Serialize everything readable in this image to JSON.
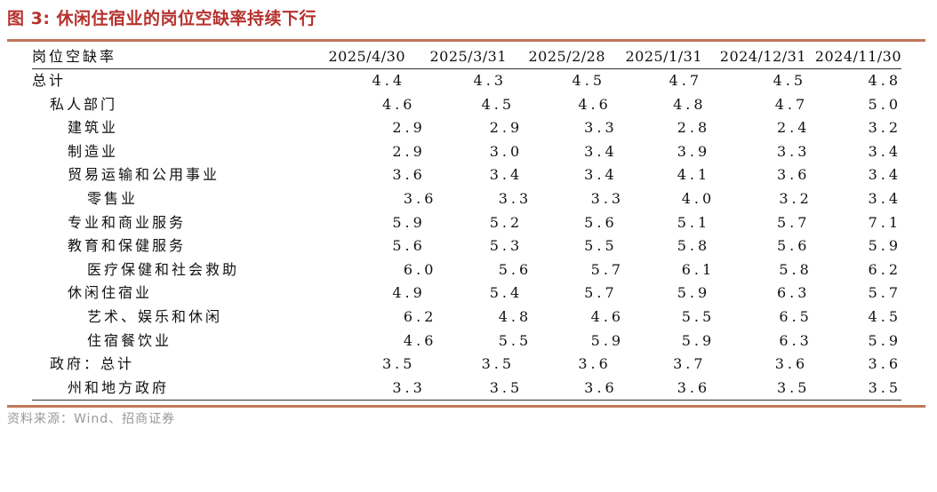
{
  "title": "图 3:  休闲住宿业的岗位空缺率持续下行",
  "table": {
    "header_label": "岗位空缺率",
    "columns": [
      "2025/4/30",
      "2025/3/31",
      "2025/2/28",
      "2025/1/31",
      "2024/12/31",
      "2024/11/30"
    ],
    "rows": [
      {
        "label": "总计",
        "indent": 0,
        "values": [
          "4.4",
          "4.3",
          "4.5",
          "4.7",
          "4.5",
          "4.8"
        ]
      },
      {
        "label": "私人部门",
        "indent": 1,
        "values": [
          "4.6",
          "4.5",
          "4.6",
          "4.8",
          "4.7",
          "5.0"
        ]
      },
      {
        "label": "建筑业",
        "indent": 2,
        "values": [
          "2.9",
          "2.9",
          "3.3",
          "2.8",
          "2.4",
          "3.2"
        ]
      },
      {
        "label": "制造业",
        "indent": 2,
        "values": [
          "2.9",
          "3.0",
          "3.4",
          "3.9",
          "3.3",
          "3.4"
        ]
      },
      {
        "label": "贸易运输和公用事业",
        "indent": 2,
        "values": [
          "3.6",
          "3.4",
          "3.4",
          "4.1",
          "3.6",
          "3.4"
        ]
      },
      {
        "label": "零售业",
        "indent": 3,
        "values": [
          "3.6",
          "3.3",
          "3.3",
          "4.0",
          "3.2",
          "3.4"
        ]
      },
      {
        "label": "专业和商业服务",
        "indent": 2,
        "values": [
          "5.9",
          "5.2",
          "5.6",
          "5.1",
          "5.7",
          "7.1"
        ]
      },
      {
        "label": "教育和保健服务",
        "indent": 2,
        "values": [
          "5.6",
          "5.3",
          "5.5",
          "5.8",
          "5.6",
          "5.9"
        ]
      },
      {
        "label": "医疗保健和社会救助",
        "indent": 3,
        "values": [
          "6.0",
          "5.6",
          "5.7",
          "6.1",
          "5.8",
          "6.2"
        ]
      },
      {
        "label": "休闲住宿业",
        "indent": 2,
        "values": [
          "4.9",
          "5.4",
          "5.7",
          "5.9",
          "6.3",
          "5.7"
        ]
      },
      {
        "label": "艺术、娱乐和休闲",
        "indent": 3,
        "values": [
          "6.2",
          "4.8",
          "4.6",
          "5.5",
          "6.5",
          "4.5"
        ]
      },
      {
        "label": "住宿餐饮业",
        "indent": 3,
        "values": [
          "4.6",
          "5.5",
          "5.9",
          "5.9",
          "6.3",
          "5.9"
        ]
      },
      {
        "label": "政府：总计",
        "indent": 1,
        "values": [
          "3.5",
          "3.5",
          "3.6",
          "3.7",
          "3.6",
          "3.6"
        ]
      },
      {
        "label": "州和地方政府",
        "indent": 2,
        "values": [
          "3.3",
          "3.5",
          "3.6",
          "3.6",
          "3.5",
          "3.5"
        ]
      }
    ]
  },
  "source": "资料来源：Wind、招商证券",
  "colors": {
    "title": "#b5322e",
    "rule": "#c0765a",
    "source": "#999999"
  }
}
